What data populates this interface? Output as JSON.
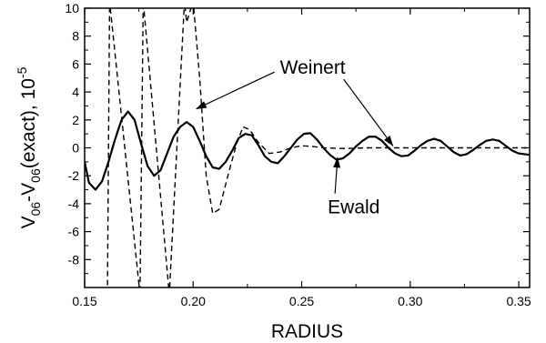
{
  "chart_data": {
    "type": "line",
    "xlabel": "RADIUS",
    "ylabel": {
      "main": "V",
      "sub1": "06",
      "mid": "-V",
      "sub2": "06",
      "tail": "(exact), 10",
      "exp": "-5"
    },
    "xlim": [
      0.15,
      0.355
    ],
    "ylim": [
      -10,
      10
    ],
    "x_ticks": [
      0.15,
      0.2,
      0.25,
      0.3,
      0.35
    ],
    "x_tick_labels": [
      "0.15",
      "0.20",
      "0.25",
      "0.30",
      "0.35"
    ],
    "y_ticks": [
      -8,
      -6,
      -4,
      -2,
      0,
      2,
      4,
      6,
      8,
      10
    ],
    "y_tick_labels": [
      "-8",
      "-6",
      "-4",
      "-2",
      "0",
      "2",
      "4",
      "6",
      "8",
      "10"
    ],
    "grid": false,
    "legend": "none",
    "series": [
      {
        "style": "solid",
        "color": "#000000",
        "points": [
          [
            0.15,
            -1.0
          ],
          [
            0.152,
            -2.5
          ],
          [
            0.155,
            -3.0
          ],
          [
            0.158,
            -2.4
          ],
          [
            0.161,
            -1.0
          ],
          [
            0.164,
            0.6
          ],
          [
            0.167,
            2.0
          ],
          [
            0.17,
            2.6
          ],
          [
            0.173,
            2.0
          ],
          [
            0.176,
            0.3
          ],
          [
            0.179,
            -1.3
          ],
          [
            0.182,
            -2.0
          ],
          [
            0.185,
            -1.6
          ],
          [
            0.188,
            -0.4
          ],
          [
            0.191,
            0.8
          ],
          [
            0.194,
            1.5
          ],
          [
            0.197,
            1.85
          ],
          [
            0.2,
            1.5
          ],
          [
            0.203,
            0.5
          ],
          [
            0.206,
            -0.6
          ],
          [
            0.209,
            -1.4
          ],
          [
            0.212,
            -1.5
          ],
          [
            0.215,
            -1.0
          ],
          [
            0.218,
            -0.2
          ],
          [
            0.221,
            0.7
          ],
          [
            0.224,
            1.0
          ],
          [
            0.227,
            0.9
          ],
          [
            0.23,
            0.2
          ],
          [
            0.233,
            -0.6
          ],
          [
            0.236,
            -1.0
          ],
          [
            0.239,
            -1.1
          ],
          [
            0.242,
            -0.6
          ],
          [
            0.245,
            0.0
          ],
          [
            0.248,
            0.6
          ],
          [
            0.251,
            1.0
          ],
          [
            0.254,
            1.05
          ],
          [
            0.257,
            0.6
          ],
          [
            0.26,
            0.0
          ],
          [
            0.263,
            -0.5
          ],
          [
            0.266,
            -0.85
          ],
          [
            0.269,
            -0.75
          ],
          [
            0.272,
            -0.4
          ],
          [
            0.275,
            0.1
          ],
          [
            0.278,
            0.5
          ],
          [
            0.281,
            0.8
          ],
          [
            0.284,
            0.8
          ],
          [
            0.287,
            0.5
          ],
          [
            0.29,
            0.0
          ],
          [
            0.293,
            -0.4
          ],
          [
            0.296,
            -0.6
          ],
          [
            0.299,
            -0.55
          ],
          [
            0.302,
            -0.2
          ],
          [
            0.305,
            0.2
          ],
          [
            0.308,
            0.5
          ],
          [
            0.311,
            0.65
          ],
          [
            0.314,
            0.5
          ],
          [
            0.317,
            0.1
          ],
          [
            0.32,
            -0.3
          ],
          [
            0.323,
            -0.55
          ],
          [
            0.326,
            -0.45
          ],
          [
            0.329,
            -0.15
          ],
          [
            0.332,
            0.2
          ],
          [
            0.335,
            0.5
          ],
          [
            0.338,
            0.6
          ],
          [
            0.341,
            0.5
          ],
          [
            0.344,
            0.15
          ],
          [
            0.347,
            -0.2
          ],
          [
            0.35,
            -0.4
          ],
          [
            0.355,
            -0.5
          ]
        ]
      },
      {
        "style": "dashed",
        "color": "#000000",
        "points": [
          [
            0.1605,
            -10.5
          ],
          [
            0.1615,
            10.5
          ],
          [
            0.1755,
            -10.5
          ],
          [
            0.177,
            10.5
          ],
          [
            0.189,
            -10.5
          ],
          [
            0.196,
            10.5
          ],
          [
            0.197,
            9.0
          ],
          [
            0.2,
            10.5
          ],
          [
            0.203,
            5.0
          ],
          [
            0.206,
            -2.0
          ],
          [
            0.209,
            -4.7
          ],
          [
            0.212,
            -4.4
          ],
          [
            0.216,
            -2.0
          ],
          [
            0.22,
            0.3
          ],
          [
            0.223,
            1.5
          ],
          [
            0.226,
            1.3
          ],
          [
            0.23,
            0.4
          ],
          [
            0.235,
            -0.4
          ],
          [
            0.24,
            -0.3
          ],
          [
            0.245,
            0.0
          ],
          [
            0.25,
            0.15
          ],
          [
            0.255,
            0.1
          ],
          [
            0.26,
            0.0
          ],
          [
            0.27,
            -0.05
          ],
          [
            0.28,
            0.0
          ],
          [
            0.29,
            0.0
          ],
          [
            0.3,
            0.0
          ],
          [
            0.355,
            0.0
          ]
        ]
      }
    ],
    "annotations": [
      {
        "text": "Weinert",
        "anchor": [
          0.24,
          5.3
        ],
        "arrows_to": [
          [
            0.2015,
            2.8
          ],
          [
            0.292,
            0.15
          ]
        ]
      },
      {
        "text": "Ewald",
        "anchor": [
          0.262,
          -4.7
        ],
        "arrows_to": [
          [
            0.2665,
            -0.7
          ]
        ]
      }
    ]
  }
}
